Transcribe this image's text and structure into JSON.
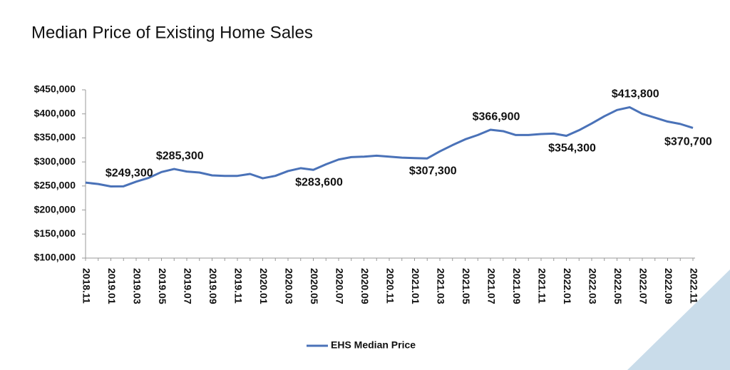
{
  "chart_data": {
    "type": "line",
    "title": "Median Price of Existing Home Sales",
    "categories": [
      "2018.11",
      null,
      "2019.01",
      null,
      "2019.03",
      null,
      "2019.05",
      null,
      "2019.07",
      null,
      "2019.09",
      null,
      "2019.11",
      null,
      "2020.01",
      null,
      "2020.03",
      null,
      "2020.05",
      null,
      "2020.07",
      null,
      "2020.09",
      null,
      "2020.11",
      null,
      "2021.01",
      null,
      "2021.03",
      null,
      "2021.05",
      null,
      "2021.07",
      null,
      "2021.09",
      null,
      "2021.11",
      null,
      "2022.01",
      null,
      "2022.03",
      null,
      "2022.05",
      null,
      "2022.07",
      null,
      "2022.09",
      null,
      "2022.11"
    ],
    "series": [
      {
        "name": "EHS Median Price",
        "color": "#4a72b8",
        "values": [
          257000,
          254000,
          249000,
          249300,
          259000,
          267000,
          279000,
          285300,
          280000,
          278000,
          272000,
          271000,
          271000,
          275000,
          266000,
          271000,
          281000,
          287000,
          283600,
          295000,
          305000,
          310000,
          311000,
          313000,
          311000,
          309000,
          308000,
          307300,
          322000,
          335000,
          347000,
          356000,
          366900,
          364000,
          356000,
          356000,
          358000,
          359000,
          354300,
          366000,
          380000,
          395000,
          408000,
          413800,
          400000,
          392000,
          384000,
          379000,
          370700
        ],
        "value_labels": [
          null,
          null,
          null,
          "$249,300",
          null,
          null,
          null,
          "$285,300",
          null,
          null,
          null,
          null,
          null,
          null,
          null,
          null,
          null,
          null,
          "$283,600",
          null,
          null,
          null,
          null,
          null,
          null,
          null,
          null,
          "$307,300",
          null,
          null,
          null,
          null,
          "$366,900",
          null,
          null,
          null,
          null,
          null,
          "$354,300",
          null,
          null,
          null,
          null,
          "$413,800",
          null,
          null,
          null,
          null,
          "$370,700"
        ]
      }
    ],
    "ylim": [
      100000,
      450000
    ],
    "yticks": [
      {
        "value": 100000,
        "label": "$100,000"
      },
      {
        "value": 150000,
        "label": "$150,000"
      },
      {
        "value": 200000,
        "label": "$200,000"
      },
      {
        "value": 250000,
        "label": "$250,000"
      },
      {
        "value": 300000,
        "label": "$300,000"
      },
      {
        "value": 350000,
        "label": "$350,000"
      },
      {
        "value": 400000,
        "label": "$400,000"
      },
      {
        "value": 450000,
        "label": "$450,000"
      }
    ],
    "legend": "bottom"
  }
}
